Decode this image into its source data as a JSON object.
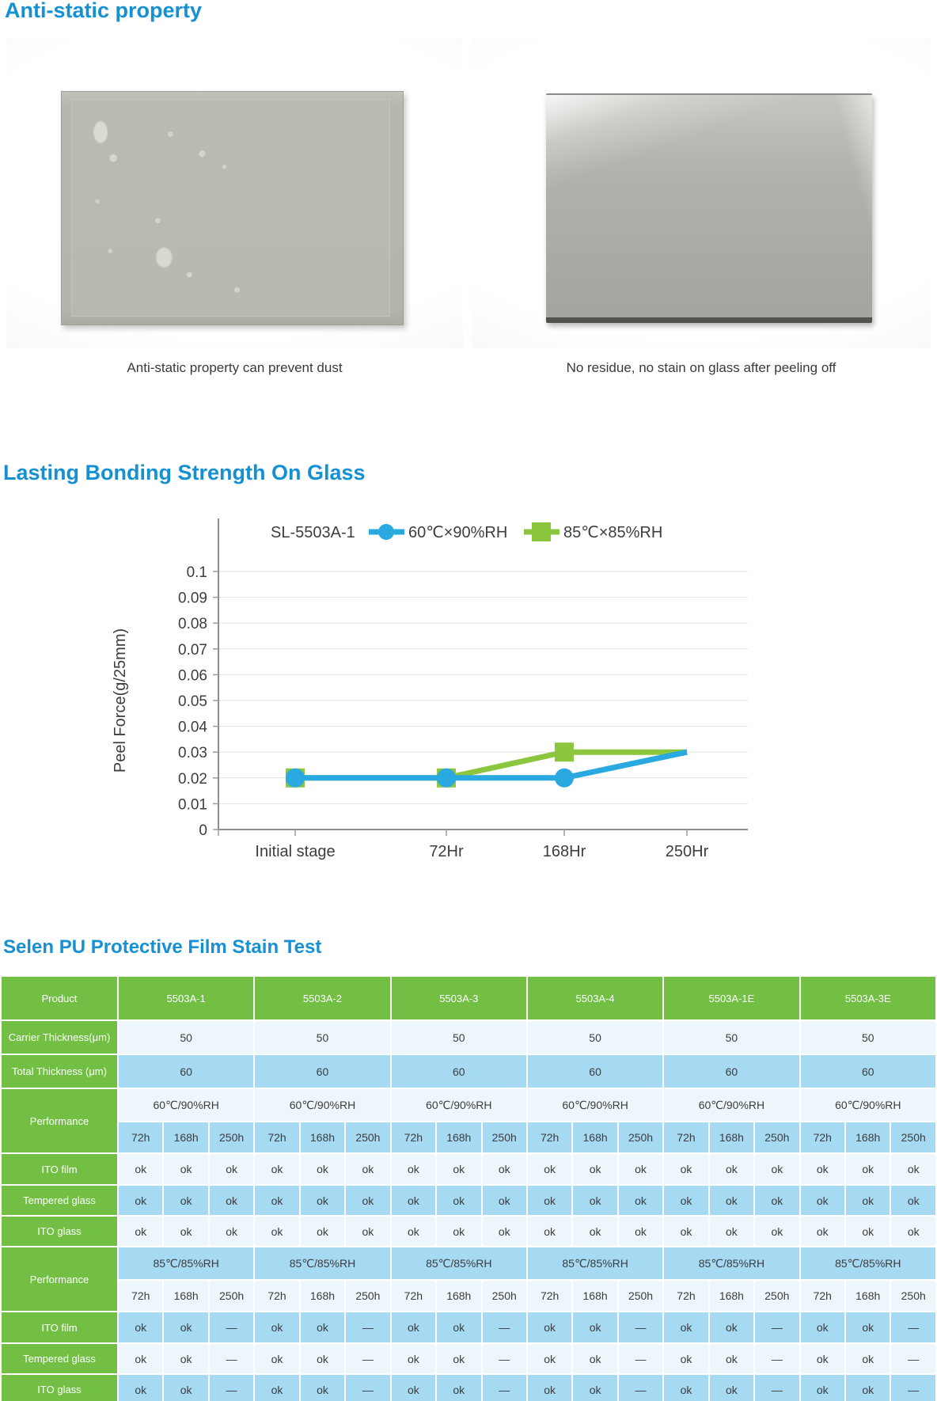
{
  "page": {
    "section1_title": "Anti-static property",
    "section2_title": "Lasting Bonding Strength On Glass",
    "section3_title": "Selen PU Protective Film Stain Test",
    "caption_left": "Anti-static property can prevent dust",
    "caption_right": "No residue, no stain on glass after peeling off"
  },
  "colors": {
    "heading_blue": "#1591d3",
    "table_green": "#72bf44",
    "row_light": "#edf6fb",
    "row_blue": "#a6d9f2",
    "series_blue": "#29a9e0",
    "series_green": "#8cc63e"
  },
  "chart_data": {
    "type": "line",
    "title": "SL-5503A-1",
    "categories": [
      "Initial stage",
      "72Hr",
      "168Hr",
      "250Hr"
    ],
    "series": [
      {
        "name": "60℃×90%RH",
        "values": [
          0.02,
          0.02,
          0.02,
          0.03
        ],
        "color": "#29a9e0",
        "marker": "circle"
      },
      {
        "name": "85℃×85%RH",
        "values": [
          0.02,
          0.02,
          0.03,
          0.03
        ],
        "color": "#8cc63e",
        "marker": "square"
      }
    ],
    "ylabel": "Peel Force(g/25mm)",
    "ylim": [
      0,
      0.1
    ],
    "ytick_step": 0.01,
    "grid": true,
    "legend_position": "top",
    "markers_on_last_point": false
  },
  "table": {
    "header": [
      "Product",
      "5503A-1",
      "5503A-2",
      "5503A-3",
      "5503A-4",
      "5503A-1E",
      "5503A-3E"
    ],
    "hours": [
      "72h",
      "168h",
      "250h"
    ],
    "rows": [
      {
        "label": "Carrier Thickness(μm)",
        "kind": "group",
        "shade": "light",
        "values": [
          "50",
          "50",
          "50",
          "50",
          "50",
          "50"
        ]
      },
      {
        "label": "Total Thickness (μm)",
        "kind": "group",
        "shade": "blue",
        "values": [
          "60",
          "60",
          "60",
          "60",
          "60",
          "60"
        ]
      },
      {
        "label": "Performance",
        "kind": "perf",
        "condition": "60℃/90%RH",
        "cond_shade": "light",
        "hours_shade": "blue"
      },
      {
        "label": "ITO film",
        "kind": "cells",
        "shade": "light",
        "values": [
          "ok",
          "ok",
          "ok",
          "ok",
          "ok",
          "ok",
          "ok",
          "ok",
          "ok",
          "ok",
          "ok",
          "ok",
          "ok",
          "ok",
          "ok",
          "ok",
          "ok",
          "ok"
        ]
      },
      {
        "label": "Tempered glass",
        "kind": "cells",
        "shade": "blue",
        "values": [
          "ok",
          "ok",
          "ok",
          "ok",
          "ok",
          "ok",
          "ok",
          "ok",
          "ok",
          "ok",
          "ok",
          "ok",
          "ok",
          "ok",
          "ok",
          "ok",
          "ok",
          "ok"
        ]
      },
      {
        "label": "ITO glass",
        "kind": "cells",
        "shade": "light",
        "values": [
          "ok",
          "ok",
          "ok",
          "ok",
          "ok",
          "ok",
          "ok",
          "ok",
          "ok",
          "ok",
          "ok",
          "ok",
          "ok",
          "ok",
          "ok",
          "ok",
          "ok",
          "ok"
        ]
      },
      {
        "label": "Performance",
        "kind": "perf",
        "condition": "85℃/85%RH",
        "cond_shade": "blue",
        "hours_shade": "light"
      },
      {
        "label": "ITO film",
        "kind": "cells",
        "shade": "blue",
        "values": [
          "ok",
          "ok",
          "—",
          "ok",
          "ok",
          "—",
          "ok",
          "ok",
          "—",
          "ok",
          "ok",
          "—",
          "ok",
          "ok",
          "—",
          "ok",
          "ok",
          "—"
        ]
      },
      {
        "label": "Tempered glass",
        "kind": "cells",
        "shade": "light",
        "values": [
          "ok",
          "ok",
          "—",
          "ok",
          "ok",
          "—",
          "ok",
          "ok",
          "—",
          "ok",
          "ok",
          "—",
          "ok",
          "ok",
          "—",
          "ok",
          "ok",
          "—"
        ]
      },
      {
        "label": "ITO glass",
        "kind": "cells",
        "shade": "blue",
        "values": [
          "ok",
          "ok",
          "—",
          "ok",
          "ok",
          "—",
          "ok",
          "ok",
          "—",
          "ok",
          "ok",
          "—",
          "ok",
          "ok",
          "—",
          "ok",
          "ok",
          "—"
        ]
      }
    ]
  }
}
